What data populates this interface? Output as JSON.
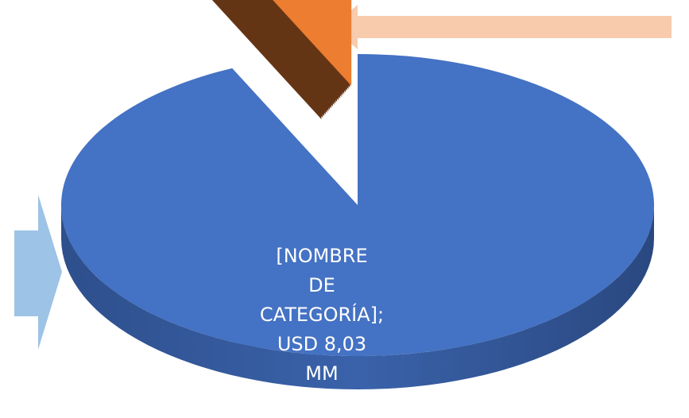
{
  "chart_data": {
    "type": "pie3d",
    "categories": [
      null,
      null
    ],
    "values": [
      8.03,
      0.6
    ],
    "value_labels": [
      "[NOMBRE DE CATEGORÍA]; USD 8,03 MM",
      null
    ],
    "colors": [
      "#4472c4",
      "#ed7d31"
    ]
  }
}
